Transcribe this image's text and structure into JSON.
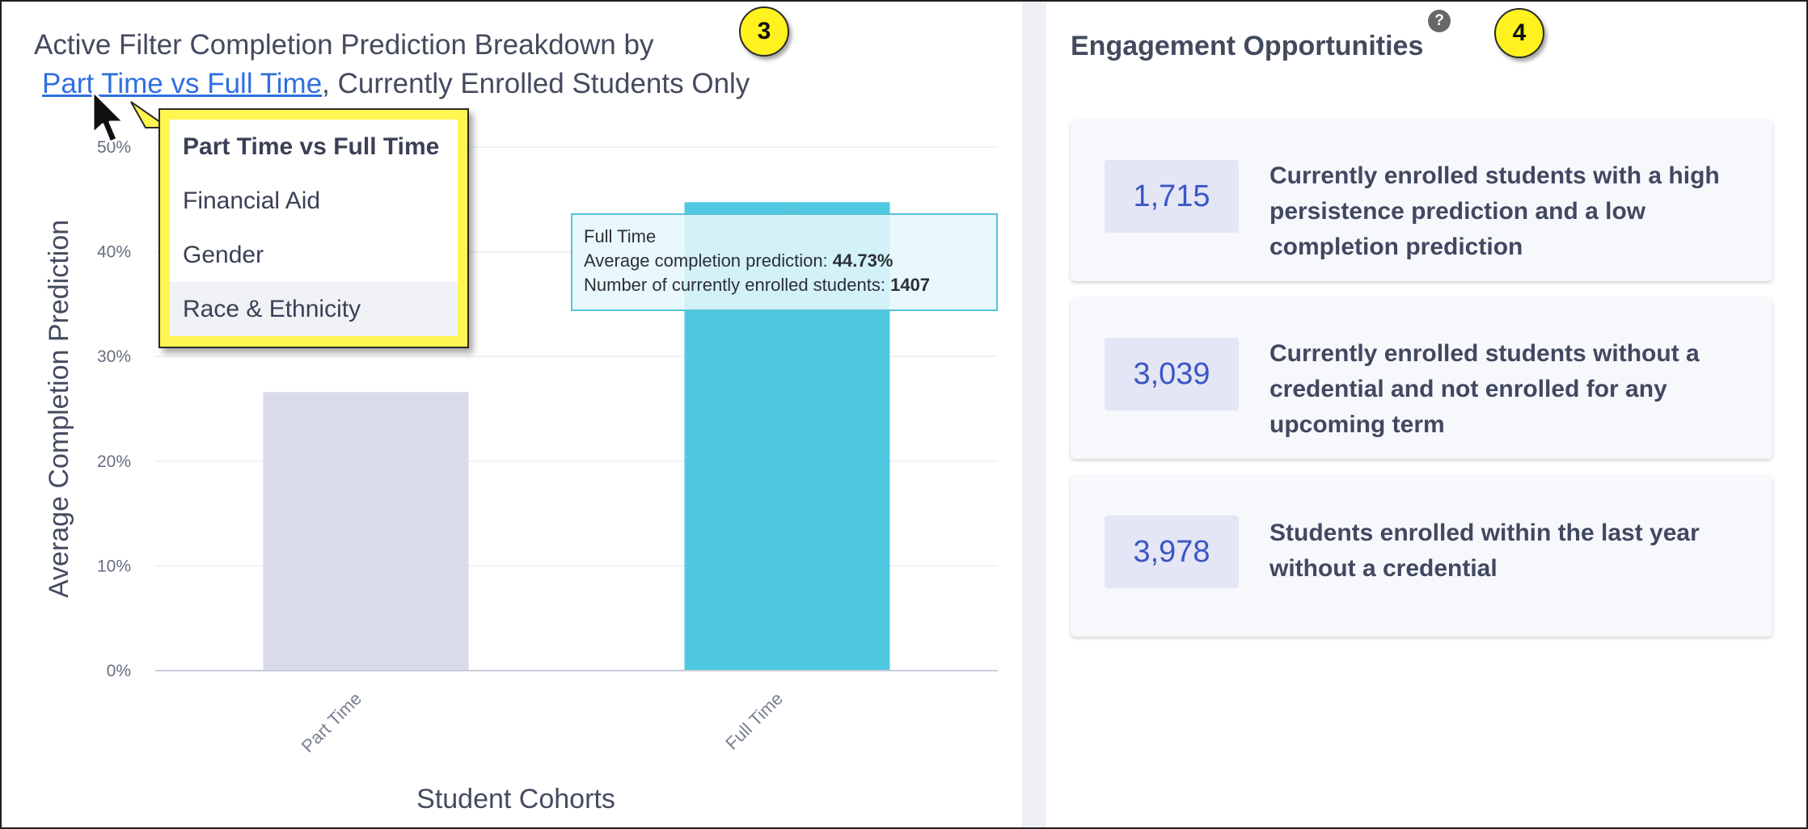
{
  "left_panel": {
    "title_prefix": "Active Filter Completion Prediction Breakdown by",
    "title_link": "Part Time vs Full Time",
    "title_suffix": ", Currently Enrolled Students Only",
    "badge": "3"
  },
  "chart_data": {
    "type": "bar",
    "categories": [
      "Part Time",
      "Full Time"
    ],
    "values": [
      26.6,
      44.73
    ],
    "colors": [
      "#d9dbea",
      "#4fc9e2"
    ],
    "xlabel": "Student Cohorts",
    "ylabel": "Average Completion Prediction",
    "ylim": [
      0,
      50
    ],
    "yticks": [
      "0%",
      "10%",
      "20%",
      "30%",
      "40%",
      "50%"
    ],
    "grid": true,
    "tooltip": {
      "title": "Full Time",
      "line1_label": "Average completion prediction:",
      "line1_value": "44.73%",
      "line2_label": "Number of currently enrolled students:",
      "line2_value": "1407"
    }
  },
  "dropdown": {
    "items": [
      "Part Time vs Full Time",
      "Financial Aid",
      "Gender",
      "Race & Ethnicity"
    ],
    "selected": "Part Time vs Full Time",
    "hovered": "Race & Ethnicity"
  },
  "right_panel": {
    "title": "Engagement Opportunities",
    "help_icon_text": "?",
    "badge": "4",
    "cards": [
      {
        "count": "1,715",
        "text": "Currently enrolled students with a high persistence prediction and a low completion prediction"
      },
      {
        "count": "3,039",
        "text": "Currently enrolled students without a credential and not enrolled for any upcoming term"
      },
      {
        "count": "3,978",
        "text": "Students enrolled within the last year without a credential"
      }
    ]
  },
  "icons": {
    "cursor": "mouse-pointer-icon",
    "help": "question-mark-icon"
  }
}
